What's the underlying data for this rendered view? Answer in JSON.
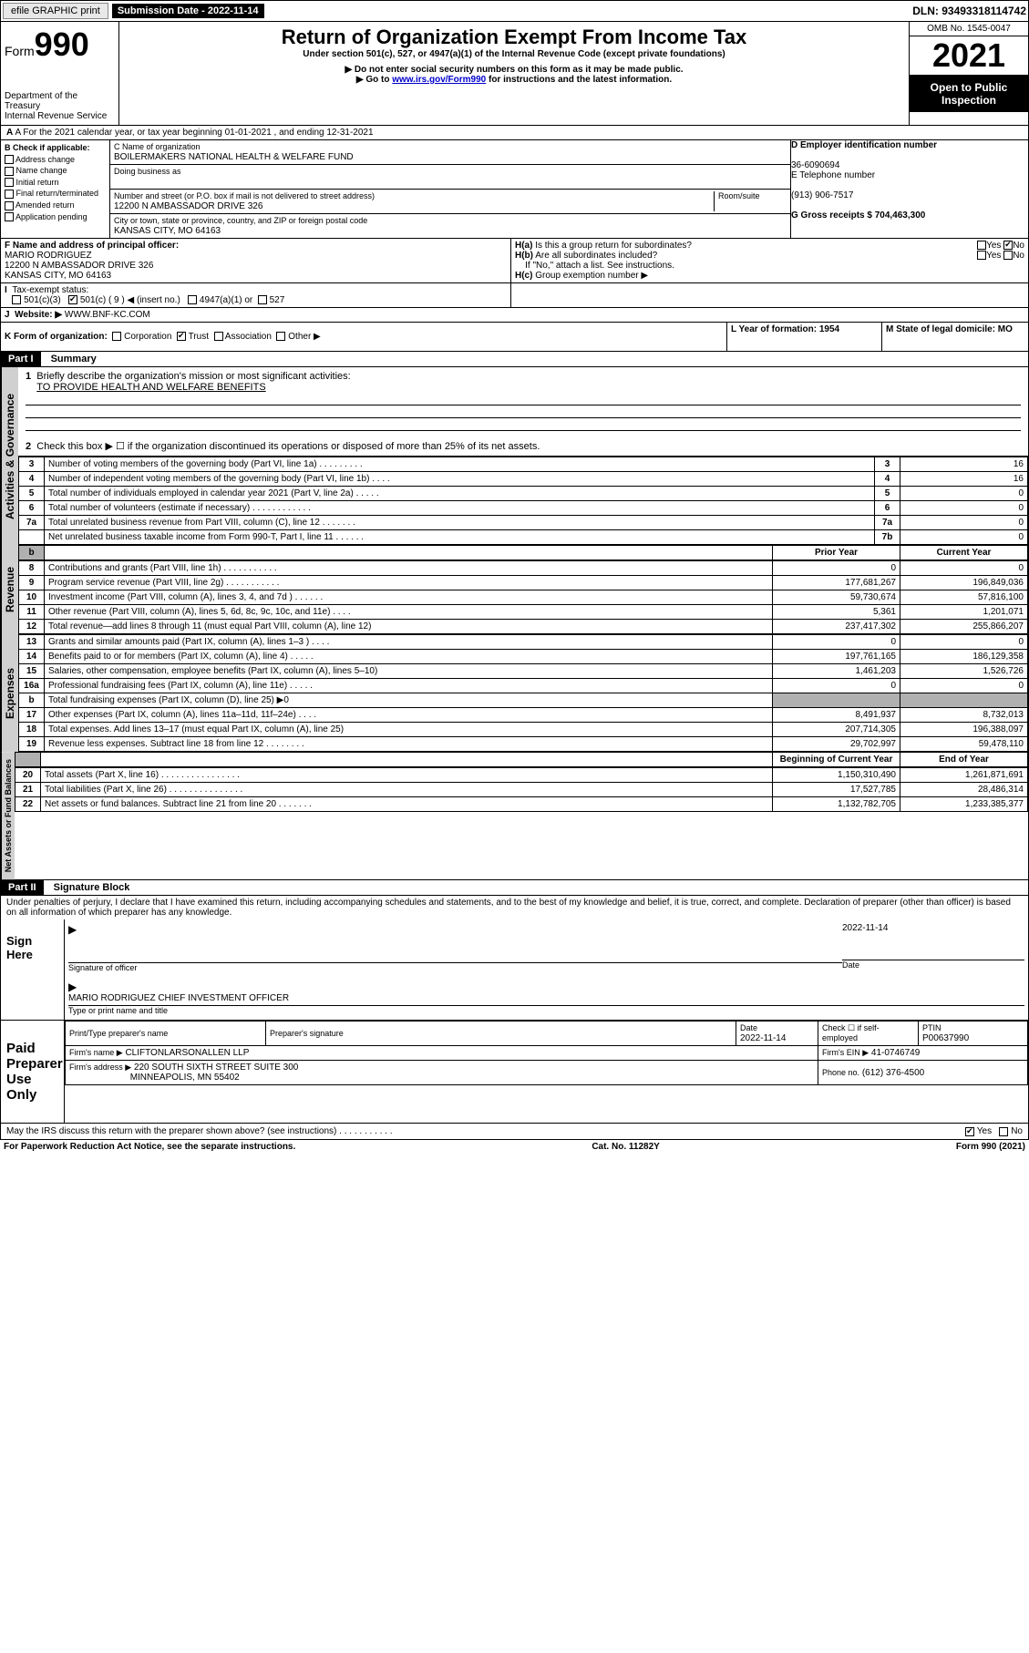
{
  "topbar": {
    "efile_label": "efile GRAPHIC print",
    "submission_label": "Submission Date - 2022-11-14",
    "dln_label": "DLN: 93493318114742"
  },
  "header": {
    "form_label": "Form",
    "form_number": "990",
    "dept": "Department of the Treasury",
    "irs": "Internal Revenue Service",
    "title": "Return of Organization Exempt From Income Tax",
    "subtitle": "Under section 501(c), 527, or 4947(a)(1) of the Internal Revenue Code (except private foundations)",
    "note1": "▶ Do not enter social security numbers on this form as it may be made public.",
    "note2_pre": "▶ Go to ",
    "note2_link": "www.irs.gov/Form990",
    "note2_post": " for instructions and the latest information.",
    "omb": "OMB No. 1545-0047",
    "year": "2021",
    "open_public": "Open to Public Inspection"
  },
  "section_a": "A For the 2021 calendar year, or tax year beginning 01-01-2021    , and ending 12-31-2021",
  "block_b": {
    "label": "B Check if applicable:",
    "opts": [
      "Address change",
      "Name change",
      "Initial return",
      "Final return/terminated",
      "Amended return",
      "Application pending"
    ]
  },
  "block_c": {
    "name_label": "C Name of organization",
    "name": "BOILERMAKERS NATIONAL HEALTH & WELFARE FUND",
    "dba_label": "Doing business as",
    "addr_label": "Number and street (or P.O. box if mail is not delivered to street address)",
    "room_label": "Room/suite",
    "addr": "12200 N AMBASSADOR DRIVE 326",
    "city_label": "City or town, state or province, country, and ZIP or foreign postal code",
    "city": "KANSAS CITY, MO  64163"
  },
  "block_d": {
    "ein_label": "D Employer identification number",
    "ein": "36-6090694",
    "phone_label": "E Telephone number",
    "phone": "(913) 906-7517",
    "gross_label": "G Gross receipts $ 704,463,300"
  },
  "block_f": {
    "label": "F Name and address of principal officer:",
    "name": "MARIO RODRIGUEZ",
    "addr1": "12200 N AMBASSADOR DRIVE 326",
    "addr2": "KANSAS CITY, MO  64163"
  },
  "block_h": {
    "ha": "Is this a group return for subordinates?",
    "hb": "Are all subordinates included?",
    "hb_note": "If \"No,\" attach a list. See instructions.",
    "hc": "Group exemption number ▶",
    "yes": "Yes",
    "no": "No"
  },
  "tax_status": {
    "label": "Tax-exempt status:",
    "c3": "501(c)(3)",
    "c": "501(c) ( 9 ) ◀ (insert no.)",
    "a1": "4947(a)(1) or",
    "s527": "527"
  },
  "website": {
    "label": "Website: ▶",
    "value": "WWW.BNF-KC.COM"
  },
  "line_k": "K Form of organization:",
  "k_opts": [
    "Corporation",
    "Trust",
    "Association",
    "Other ▶"
  ],
  "line_l": {
    "label": "L Year of formation: 1954"
  },
  "line_m": {
    "label": "M State of legal domicile: MO"
  },
  "part1": {
    "header": "Part I",
    "title": "Summary",
    "q1": "Briefly describe the organization's mission or most significant activities:",
    "mission": "TO PROVIDE HEALTH AND WELFARE BENEFITS",
    "q2": "Check this box ▶ ☐  if the organization discontinued its operations or disposed of more than 25% of its net assets."
  },
  "labels": {
    "activities": "Activities & Governance",
    "revenue": "Revenue",
    "expenses": "Expenses",
    "net": "Net Assets or Fund Balances"
  },
  "gov_rows": [
    {
      "n": "3",
      "t": "Number of voting members of the governing body (Part VI, line 1a)  .  .  .  .  .  .  .  .  .",
      "box": "3",
      "v": "16"
    },
    {
      "n": "4",
      "t": "Number of independent voting members of the governing body (Part VI, line 1b)  .  .  .  .",
      "box": "4",
      "v": "16"
    },
    {
      "n": "5",
      "t": "Total number of individuals employed in calendar year 2021 (Part V, line 2a)  .  .  .  .  .",
      "box": "5",
      "v": "0"
    },
    {
      "n": "6",
      "t": "Total number of volunteers (estimate if necessary)  .  .  .  .  .  .  .  .  .  .  .  .",
      "box": "6",
      "v": "0"
    },
    {
      "n": "7a",
      "t": "Total unrelated business revenue from Part VIII, column (C), line 12  .  .  .  .  .  .  .",
      "box": "7a",
      "v": "0"
    },
    {
      "n": "",
      "t": "Net unrelated business taxable income from Form 990-T, Part I, line 11  .  .  .  .  .  .",
      "box": "7b",
      "v": "0"
    }
  ],
  "two_col_header": {
    "prior": "Prior Year",
    "current": "Current Year"
  },
  "rev_rows": [
    {
      "n": "8",
      "t": "Contributions and grants (Part VIII, line 1h)  .  .  .  .  .  .  .  .  .  .  .",
      "p": "0",
      "c": "0"
    },
    {
      "n": "9",
      "t": "Program service revenue (Part VIII, line 2g)  .  .  .  .  .  .  .  .  .  .  .",
      "p": "177,681,267",
      "c": "196,849,036"
    },
    {
      "n": "10",
      "t": "Investment income (Part VIII, column (A), lines 3, 4, and 7d )  .  .  .  .  .  .",
      "p": "59,730,674",
      "c": "57,816,100"
    },
    {
      "n": "11",
      "t": "Other revenue (Part VIII, column (A), lines 5, 6d, 8c, 9c, 10c, and 11e)  .  .  .  .",
      "p": "5,361",
      "c": "1,201,071"
    },
    {
      "n": "12",
      "t": "Total revenue—add lines 8 through 11 (must equal Part VIII, column (A), line 12)",
      "p": "237,417,302",
      "c": "255,866,207"
    }
  ],
  "exp_rows": [
    {
      "n": "13",
      "t": "Grants and similar amounts paid (Part IX, column (A), lines 1–3 )  .  .  .  .",
      "p": "0",
      "c": "0"
    },
    {
      "n": "14",
      "t": "Benefits paid to or for members (Part IX, column (A), line 4)  .  .  .  .  .",
      "p": "197,761,165",
      "c": "186,129,358"
    },
    {
      "n": "15",
      "t": "Salaries, other compensation, employee benefits (Part IX, column (A), lines 5–10)",
      "p": "1,461,203",
      "c": "1,526,726"
    },
    {
      "n": "16a",
      "t": "Professional fundraising fees (Part IX, column (A), line 11e)  .  .  .  .  .",
      "p": "0",
      "c": "0"
    },
    {
      "n": "b",
      "t": "Total fundraising expenses (Part IX, column (D), line 25) ▶0",
      "p": "",
      "c": "",
      "grey": true
    },
    {
      "n": "17",
      "t": "Other expenses (Part IX, column (A), lines 11a–11d, 11f–24e)  .  .  .  .",
      "p": "8,491,937",
      "c": "8,732,013"
    },
    {
      "n": "18",
      "t": "Total expenses. Add lines 13–17 (must equal Part IX, column (A), line 25)",
      "p": "207,714,305",
      "c": "196,388,097"
    },
    {
      "n": "19",
      "t": "Revenue less expenses. Subtract line 18 from line 12  .  .  .  .  .  .  .  .",
      "p": "29,702,997",
      "c": "59,478,110"
    }
  ],
  "net_header": {
    "begin": "Beginning of Current Year",
    "end": "End of Year"
  },
  "net_rows": [
    {
      "n": "20",
      "t": "Total assets (Part X, line 16)  .  .  .  .  .  .  .  .  .  .  .  .  .  .  .  .",
      "p": "1,150,310,490",
      "c": "1,261,871,691"
    },
    {
      "n": "21",
      "t": "Total liabilities (Part X, line 26)  .  .  .  .  .  .  .  .  .  .  .  .  .  .  .",
      "p": "17,527,785",
      "c": "28,486,314"
    },
    {
      "n": "22",
      "t": "Net assets or fund balances. Subtract line 21 from line 20  .  .  .  .  .  .  .",
      "p": "1,132,782,705",
      "c": "1,233,385,377"
    }
  ],
  "part2": {
    "header": "Part II",
    "title": "Signature Block",
    "declaration": "Under penalties of perjury, I declare that I have examined this return, including accompanying schedules and statements, and to the best of my knowledge and belief, it is true, correct, and complete. Declaration of preparer (other than officer) is based on all information of which preparer has any knowledge."
  },
  "sign": {
    "here": "Sign Here",
    "sig_officer": "Signature of officer",
    "date": "Date",
    "date_val": "2022-11-14",
    "name": "MARIO RODRIGUEZ  CHIEF INVESTMENT OFFICER",
    "name_label": "Type or print name and title"
  },
  "preparer": {
    "left": "Paid Preparer Use Only",
    "h1": "Print/Type preparer's name",
    "h2": "Preparer's signature",
    "h3": "Date",
    "date": "2022-11-14",
    "h4": "Check ☐ if self-employed",
    "ptin_label": "PTIN",
    "ptin": "P00637990",
    "firm_name_label": "Firm's name     ▶",
    "firm_name": "CLIFTONLARSONALLEN LLP",
    "firm_ein_label": "Firm's EIN ▶",
    "firm_ein": "41-0746749",
    "firm_addr_label": "Firm's address ▶",
    "firm_addr": "220 SOUTH SIXTH STREET SUITE 300",
    "firm_city": "MINNEAPOLIS, MN  55402",
    "phone_label": "Phone no.",
    "phone": "(612) 376-4500"
  },
  "discuss": {
    "q": "May the IRS discuss this return with the preparer shown above? (see instructions)  .  .  .  .  .  .  .  .  .  .  .",
    "yes": "Yes",
    "no": "No"
  },
  "footer": {
    "left": "For Paperwork Reduction Act Notice, see the separate instructions.",
    "center": "Cat. No. 11282Y",
    "right": "Form 990 (2021)"
  }
}
